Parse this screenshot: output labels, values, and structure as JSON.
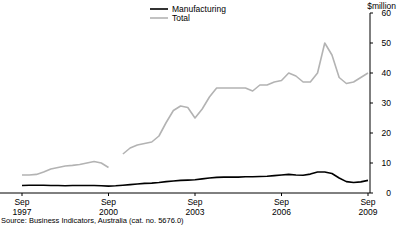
{
  "chart_data": {
    "type": "line",
    "ylabel": "$million",
    "source": "Source: Business Indicators, Australia (cat. no. 5676.0)",
    "categories": [
      "Sep 1997",
      null,
      null,
      null,
      null,
      null,
      null,
      null,
      null,
      null,
      null,
      null,
      "Sep 2000",
      null,
      null,
      null,
      null,
      null,
      null,
      null,
      null,
      null,
      null,
      null,
      "Sep 2003",
      null,
      null,
      null,
      null,
      null,
      null,
      null,
      null,
      null,
      null,
      null,
      "Sep 2006",
      null,
      null,
      null,
      null,
      null,
      null,
      null,
      null,
      null,
      null,
      null,
      "Sep 2009"
    ],
    "series": [
      {
        "name": "Manufacturing",
        "color": "#000000",
        "values": [
          2.5,
          2.6,
          2.6,
          2.6,
          2.5,
          2.5,
          2.4,
          2.5,
          2.5,
          2.5,
          2.5,
          2.4,
          2.3,
          2.4,
          2.6,
          2.8,
          3,
          3.2,
          3.3,
          3.5,
          3.8,
          4,
          4.2,
          4.3,
          4.4,
          4.7,
          5,
          5.2,
          5.3,
          5.3,
          5.3,
          5.4,
          5.4,
          5.5,
          5.6,
          5.8,
          6,
          6.2,
          6,
          5.9,
          6.3,
          7,
          7,
          6.5,
          5,
          3.8,
          3.5,
          3.7,
          4.2
        ]
      },
      {
        "name": "Total",
        "color": "#b3b3b3",
        "values": [
          6,
          6,
          6.2,
          7,
          8,
          8.5,
          9,
          9.2,
          9.5,
          10,
          10.5,
          10,
          8.5,
          null,
          13,
          15,
          16,
          16.5,
          17,
          19,
          23.5,
          27.5,
          29,
          28.5,
          25,
          28,
          32,
          35,
          35,
          35,
          35,
          35,
          34,
          36,
          36,
          37,
          37.5,
          40,
          39,
          37,
          37,
          40,
          50,
          46,
          38.5,
          36.5,
          37,
          38.5,
          40
        ]
      }
    ],
    "ylim": [
      0,
      60
    ],
    "yticks": [
      0,
      10,
      20,
      30,
      40,
      50,
      60
    ],
    "grid": false,
    "legend": "upper left"
  }
}
